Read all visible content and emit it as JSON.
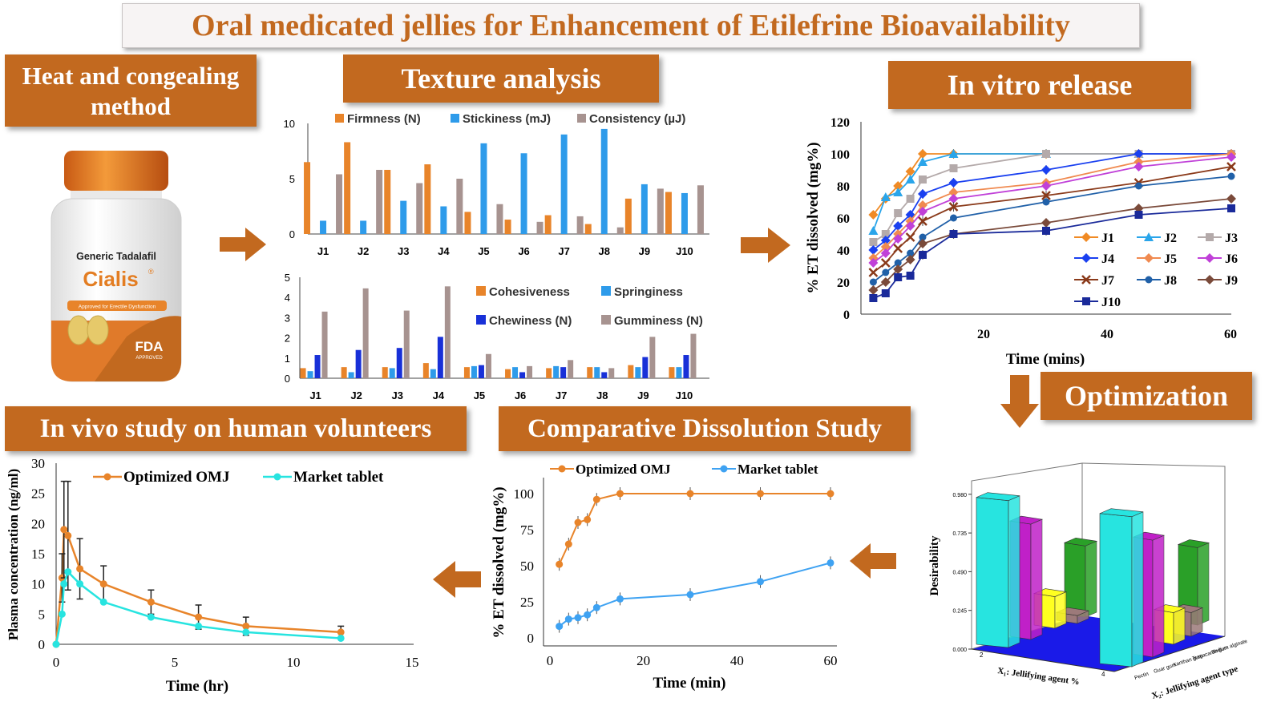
{
  "title": "Oral medicated jellies for Enhancement of Etilefrine Bioavailability",
  "sections": {
    "heat_method": "Heat and congealing method",
    "texture": "Texture analysis",
    "in_vitro": "In vitro release",
    "optimization": "Optimization",
    "comparative": "Comparative  Dissolution Study",
    "in_vivo": "In vivo study on human volunteers"
  },
  "product": {
    "generic": "Generic Tadalafil",
    "brand": "Cialis",
    "approved": "Approved for Erectile Dysfunction",
    "fda": "FDA",
    "fda_sub": "APPROVED"
  },
  "colors": {
    "banner": "#c2691f",
    "orange": "#e8842a",
    "blue": "#2e9bea",
    "darkblue": "#1830d8",
    "grey": "#a79390",
    "cyan": "#27e4e0"
  },
  "chart_data": [
    {
      "id": "texture1",
      "type": "bar",
      "categories": [
        "J1",
        "J2",
        "J3",
        "J4",
        "J5",
        "J6",
        "J7",
        "J8",
        "J9",
        "J10"
      ],
      "series": [
        {
          "name": "Firmness (N)",
          "values": [
            6.5,
            8.3,
            5.8,
            6.3,
            2.0,
            1.3,
            1.7,
            0.9,
            3.2,
            3.8
          ]
        },
        {
          "name": "Stickiness (mJ)",
          "values": [
            1.2,
            1.2,
            3.0,
            2.5,
            8.2,
            7.3,
            9.0,
            9.5,
            4.5,
            3.7
          ]
        },
        {
          "name": "Consistency (µJ)",
          "values": [
            5.4,
            5.8,
            4.6,
            5.0,
            2.7,
            1.1,
            1.6,
            0.6,
            4.1,
            4.4
          ]
        }
      ],
      "yticks": [
        0,
        5,
        10
      ],
      "ylim": [
        0,
        10
      ]
    },
    {
      "id": "texture2",
      "type": "bar",
      "categories": [
        "J1",
        "J2",
        "J3",
        "J4",
        "J5",
        "J6",
        "J7",
        "J8",
        "J9",
        "J10"
      ],
      "series": [
        {
          "name": "Cohesiveness",
          "values": [
            0.5,
            0.55,
            0.55,
            0.75,
            0.55,
            0.45,
            0.5,
            0.55,
            0.65,
            0.55
          ]
        },
        {
          "name": "Springiness",
          "values": [
            0.35,
            0.3,
            0.5,
            0.45,
            0.6,
            0.55,
            0.6,
            0.55,
            0.55,
            0.55
          ]
        },
        {
          "name": "Chewiness (N)",
          "values": [
            1.15,
            1.4,
            1.5,
            2.05,
            0.65,
            0.3,
            0.55,
            0.3,
            1.05,
            1.15
          ]
        },
        {
          "name": "Gumminess (N)",
          "values": [
            3.3,
            4.45,
            3.35,
            4.55,
            1.2,
            0.6,
            0.9,
            0.5,
            2.05,
            2.2
          ]
        }
      ],
      "yticks": [
        0,
        1,
        2,
        3,
        4,
        5
      ],
      "ylim": [
        0,
        5
      ]
    },
    {
      "id": "invitro",
      "type": "line",
      "xlabel": "Time (mins)",
      "ylabel": "% ET dissolved (mg%)",
      "xlim": [
        0,
        60
      ],
      "ylim": [
        0,
        120
      ],
      "xticks": [
        20,
        40,
        60
      ],
      "yticks": [
        0,
        20,
        40,
        60,
        80,
        100,
        120
      ],
      "x": [
        2,
        4,
        6,
        8,
        10,
        15,
        30,
        45,
        60
      ],
      "series": [
        {
          "name": "J1",
          "values": [
            62,
            72,
            80,
            89,
            100,
            100,
            100,
            100,
            100
          ]
        },
        {
          "name": "J2",
          "values": [
            52,
            73,
            76,
            84,
            95,
            100,
            100,
            100,
            100
          ]
        },
        {
          "name": "J3",
          "values": [
            45,
            50,
            63,
            72,
            84,
            91,
            100,
            100,
            100
          ]
        },
        {
          "name": "J4",
          "values": [
            40,
            46,
            55,
            62,
            75,
            82,
            90,
            100,
            100
          ]
        },
        {
          "name": "J5",
          "values": [
            35,
            42,
            50,
            58,
            68,
            76,
            82,
            95,
            100
          ]
        },
        {
          "name": "J6",
          "values": [
            32,
            38,
            47,
            55,
            64,
            72,
            80,
            92,
            98
          ]
        },
        {
          "name": "J7",
          "values": [
            26,
            32,
            41,
            48,
            58,
            67,
            74,
            82,
            92
          ]
        },
        {
          "name": "J8",
          "values": [
            20,
            26,
            32,
            38,
            48,
            60,
            70,
            80,
            86
          ]
        },
        {
          "name": "J9",
          "values": [
            15,
            20,
            28,
            34,
            44,
            50,
            57,
            66,
            72
          ]
        },
        {
          "name": "J10",
          "values": [
            10,
            13,
            23,
            24,
            37,
            50,
            52,
            62,
            66
          ]
        }
      ]
    },
    {
      "id": "optimization",
      "type": "bar",
      "title": "",
      "ylabel": "Desirability",
      "xlabel": "X₁: Jellifying agent %",
      "zlabel": "X₂: Jellifying agent type",
      "yticks": [
        "0.000",
        "0.245",
        "0.490",
        "0.735",
        "0.980"
      ],
      "x_levels": [
        "2",
        "4"
      ],
      "agent_types": [
        "Pectin",
        "Guar gum",
        "Xanthan gum",
        "Tragacanth gum",
        "Sodium alginate"
      ],
      "values": {
        "Pectin": [
          0.93,
          0.95
        ],
        "Guar gum": [
          0.73,
          0.74
        ],
        "Xanthan gum": [
          0.2,
          0.2
        ],
        "Tragacanth gum": [
          0.05,
          0.15
        ],
        "Sodium alginate": [
          0.45,
          0.49
        ]
      }
    },
    {
      "id": "comparative",
      "type": "line",
      "xlabel": "Time (min)",
      "ylabel": "% ET dissolved (mg%)",
      "xlim": [
        0,
        60
      ],
      "ylim": [
        0,
        100
      ],
      "xticks": [
        0,
        20,
        40,
        60
      ],
      "yticks": [
        0,
        25,
        50,
        75,
        100
      ],
      "series": [
        {
          "name": "Optimized OMJ",
          "x": [
            2,
            4,
            6,
            8,
            10,
            15,
            30,
            45,
            60
          ],
          "values": [
            51,
            65,
            80,
            82,
            96,
            100,
            100,
            100,
            100
          ]
        },
        {
          "name": "Market tablet",
          "x": [
            2,
            4,
            6,
            8,
            10,
            15,
            30,
            45,
            60
          ],
          "values": [
            8,
            13,
            14,
            16,
            21,
            27,
            30,
            39,
            52
          ]
        }
      ]
    },
    {
      "id": "invivo",
      "type": "line",
      "xlabel": "Time (hr)",
      "ylabel": "Plasma concentration  (ng/ml)",
      "xlim": [
        0,
        15
      ],
      "ylim": [
        0,
        30
      ],
      "xticks": [
        0,
        5,
        10,
        15
      ],
      "yticks": [
        0,
        5,
        10,
        15,
        20,
        25,
        30
      ],
      "series": [
        {
          "name": "Optimized OMJ",
          "x": [
            0,
            0.25,
            0.33,
            0.5,
            1,
            2,
            4,
            6,
            8,
            12
          ],
          "values": [
            0,
            11,
            19,
            18,
            12.5,
            10,
            7,
            4.5,
            3,
            2
          ]
        },
        {
          "name": "Market tablet",
          "x": [
            0,
            0.25,
            0.33,
            0.5,
            1,
            2,
            4,
            6,
            8,
            12
          ],
          "values": [
            0,
            5,
            10,
            12,
            10,
            7,
            4.5,
            3,
            2,
            1
          ]
        }
      ]
    }
  ]
}
